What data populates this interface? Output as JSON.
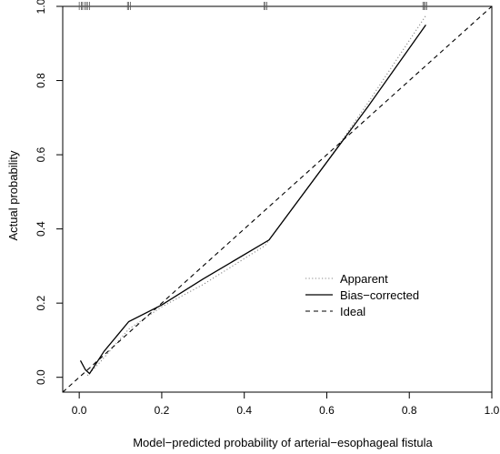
{
  "chart_data": {
    "type": "line",
    "title": "",
    "xlabel": "Model−predicted probability of arterial−esophageal fistula",
    "ylabel": "Actual probability",
    "xlim": [
      -0.04,
      1.0
    ],
    "ylim": [
      -0.04,
      1.0
    ],
    "x_ticks": [
      "0.0",
      "0.2",
      "0.4",
      "0.6",
      "0.8",
      "1.0"
    ],
    "y_ticks": [
      "0.0",
      "0.2",
      "0.4",
      "0.6",
      "0.8",
      "1.0"
    ],
    "grid": false,
    "legend_position": "bottom-right",
    "series": [
      {
        "name": "Apparent",
        "style": "dotted",
        "color": "#888888",
        "x": [
          0.02,
          0.05,
          0.12,
          0.2,
          0.3,
          0.45,
          0.6,
          0.7,
          0.84
        ],
        "y": [
          0.005,
          0.04,
          0.13,
          0.19,
          0.25,
          0.355,
          0.58,
          0.74,
          0.975
        ]
      },
      {
        "name": "Bias−corrected",
        "style": "solid",
        "color": "#000000",
        "x": [
          0.003,
          0.015,
          0.025,
          0.06,
          0.12,
          0.2,
          0.3,
          0.46,
          0.6,
          0.7,
          0.84
        ],
        "y": [
          0.045,
          0.02,
          0.01,
          0.07,
          0.15,
          0.195,
          0.265,
          0.37,
          0.58,
          0.73,
          0.95
        ]
      },
      {
        "name": "Ideal",
        "style": "dashed",
        "color": "#000000",
        "x": [
          -0.04,
          1.0
        ],
        "y": [
          -0.04,
          1.0
        ]
      }
    ],
    "rug": {
      "y": 1.0,
      "x": [
        0.0,
        0.005,
        0.008,
        0.013,
        0.017,
        0.02,
        0.025,
        0.117,
        0.12,
        0.124,
        0.448,
        0.451,
        0.455,
        0.833,
        0.836,
        0.839,
        0.842
      ]
    }
  }
}
